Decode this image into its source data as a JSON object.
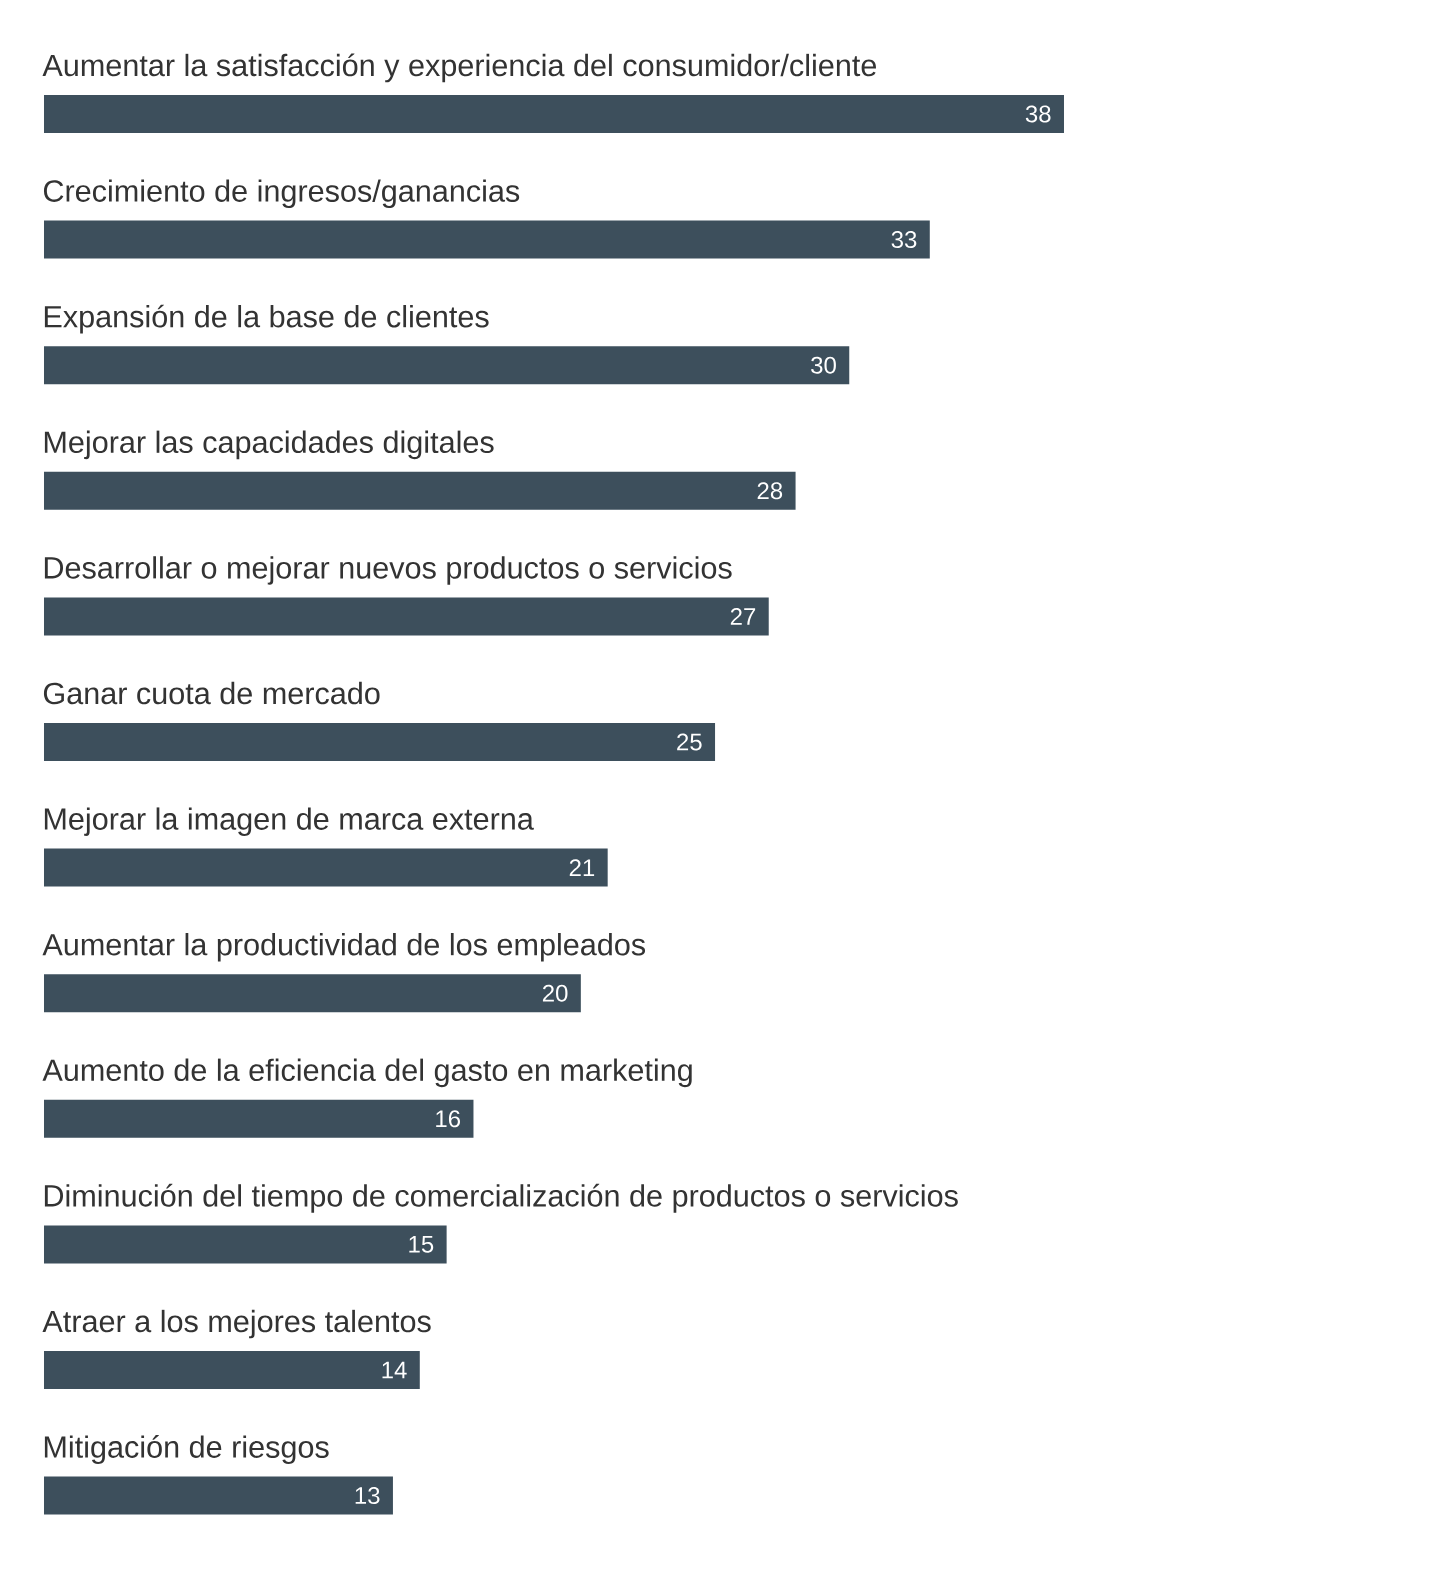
{
  "chart_data": {
    "type": "bar",
    "orientation": "horizontal",
    "categories": [
      "Aumentar la satisfacción y experiencia del consumidor/cliente",
      "Crecimiento de ingresos/ganancias",
      "Expansión de la base de clientes",
      "Mejorar las capacidades digitales",
      "Desarrollar o mejorar nuevos productos o servicios",
      "Ganar cuota de mercado",
      "Mejorar la imagen de marca externa",
      "Aumentar la productividad de los empleados",
      "Aumento de la eficiencia del gasto en marketing",
      "Diminución del tiempo de comercialización de productos o servicios",
      "Atraer a los mejores talentos",
      "Mitigación de riesgos"
    ],
    "values": [
      38,
      33,
      30,
      28,
      27,
      25,
      21,
      20,
      16,
      15,
      14,
      13
    ],
    "color": "#3d4f5c",
    "data_labels": true
  }
}
